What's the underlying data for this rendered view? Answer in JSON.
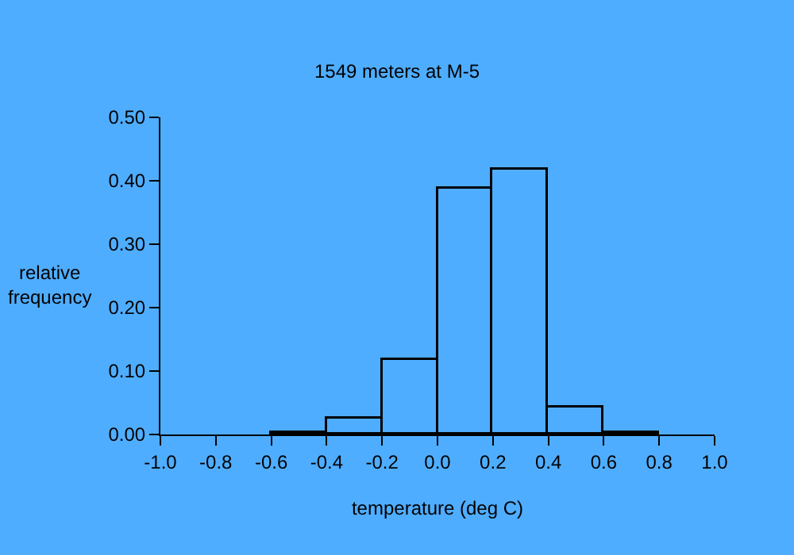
{
  "chart_data": {
    "type": "histogram",
    "title": "1549 meters at M-5",
    "xlabel": "temperature (deg C)",
    "ylabel": "relative\nfrequency",
    "bins": [
      -0.6,
      -0.4,
      -0.2,
      0.0,
      0.2,
      0.4,
      0.6,
      0.8
    ],
    "values": [
      0.002,
      0.025,
      0.118,
      0.388,
      0.418,
      0.042,
      0.002
    ],
    "color": "#000000",
    "xlim": [
      -1.0,
      1.0
    ],
    "xticks": [
      {
        "value": -1.0,
        "label": "-1.0"
      },
      {
        "value": -0.8,
        "label": "-0.8"
      },
      {
        "value": -0.6,
        "label": "-0.6"
      },
      {
        "value": -0.4,
        "label": "-0.4"
      },
      {
        "value": -0.2,
        "label": "-0.2"
      },
      {
        "value": 0.0,
        "label": "0.0"
      },
      {
        "value": 0.2,
        "label": "0.2"
      },
      {
        "value": 0.4,
        "label": "0.4"
      },
      {
        "value": 0.6,
        "label": "0.6"
      },
      {
        "value": 0.8,
        "label": "0.8"
      },
      {
        "value": 1.0,
        "label": "1.0"
      }
    ],
    "ylim": [
      0,
      0.5
    ],
    "yticks": [
      {
        "value": 0,
        "label": "0.00"
      },
      {
        "value": 0.1,
        "label": "0.10"
      },
      {
        "value": 0.2,
        "label": "0.20"
      },
      {
        "value": 0.3,
        "label": "0.30"
      },
      {
        "value": 0.4,
        "label": "0.40"
      },
      {
        "value": 0.5,
        "label": "0.50"
      }
    ],
    "grid": false
  }
}
